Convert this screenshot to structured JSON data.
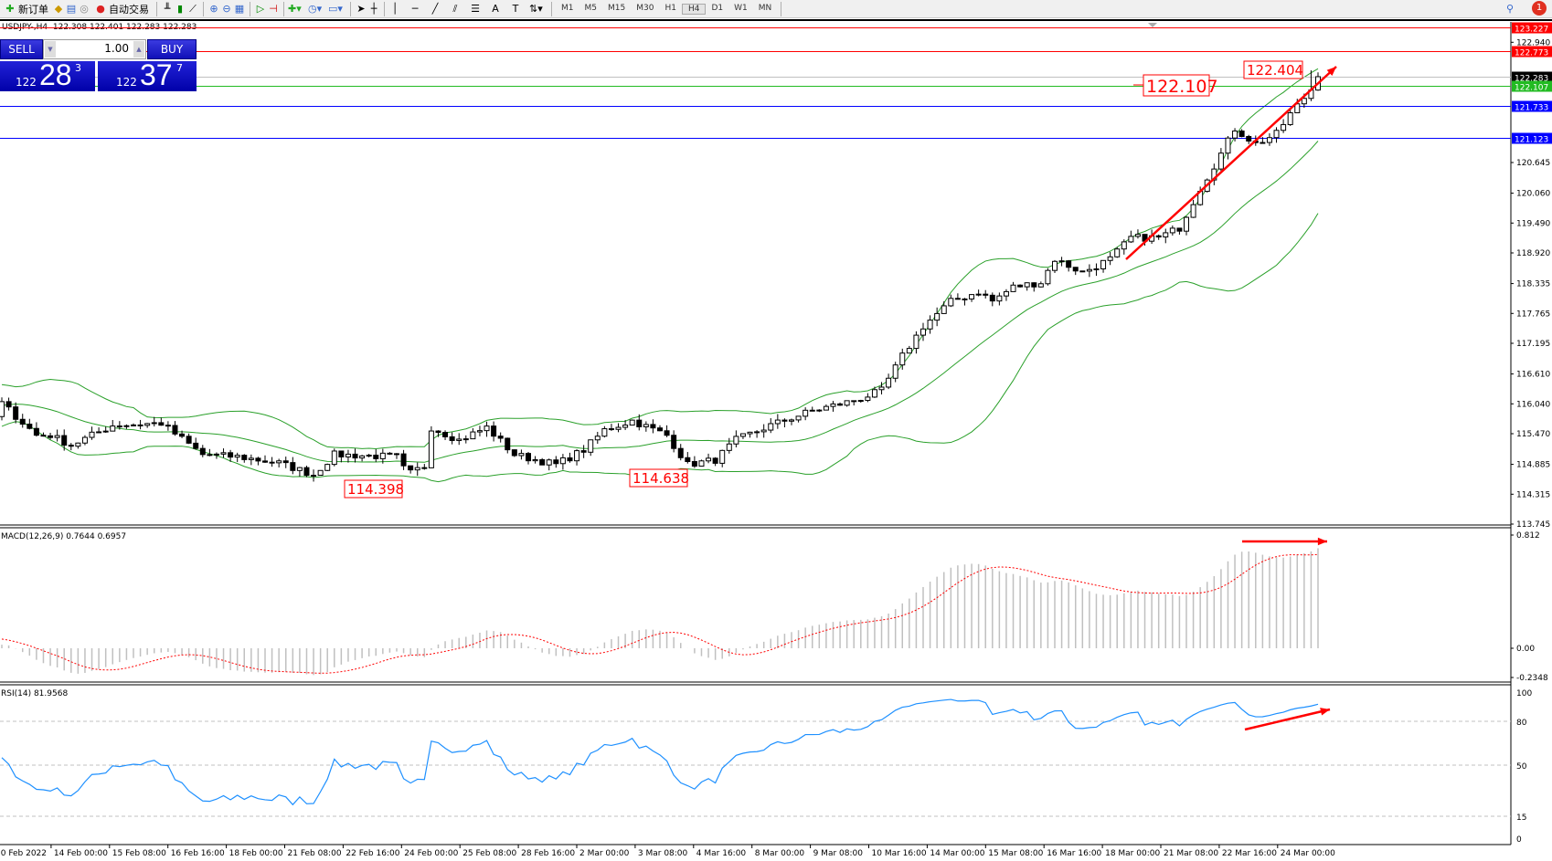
{
  "toolbar": {
    "new_order": "新订单",
    "auto_trading": "自动交易",
    "timeframes": [
      "M1",
      "M5",
      "M15",
      "M30",
      "H1",
      "H4",
      "D1",
      "W1",
      "MN"
    ],
    "active_timeframe": "H4",
    "notification_count": "1",
    "icons": [
      "new-order-icon",
      "market-watch-icon",
      "data-window-icon",
      "navigator-icon",
      "signals-icon",
      "auto-trading-icon",
      "bar-chart-icon",
      "candlestick-icon",
      "line-chart-icon",
      "zoom-in-icon",
      "zoom-out-icon",
      "tile-windows-icon",
      "auto-scroll-icon",
      "chart-shift-icon",
      "indicators-icon",
      "periods-icon",
      "templates-icon",
      "cursor-icon",
      "crosshair-icon",
      "vertical-line-icon",
      "horizontal-line-icon",
      "trendline-icon",
      "channel-icon",
      "fibonacci-icon",
      "text-icon",
      "text-label-icon",
      "arrows-icon",
      "search-icon",
      "notification-icon"
    ]
  },
  "symbol": {
    "name": "USDJPY-,H4",
    "ohlc": "122.308 122.401 122.283 122.283"
  },
  "one_click": {
    "sell_label": "SELL",
    "buy_label": "BUY",
    "lot": "1.00",
    "sell": {
      "prefix": "122",
      "big": "28",
      "sup": "3"
    },
    "buy": {
      "prefix": "122",
      "big": "37",
      "sup": "7"
    }
  },
  "price_axis": {
    "ticks": [
      "122.940",
      "120.645",
      "120.060",
      "119.490",
      "118.920",
      "118.335",
      "117.765",
      "117.195",
      "116.610",
      "116.040",
      "115.470",
      "114.885",
      "114.315",
      "113.745"
    ]
  },
  "levels": [
    {
      "price": "123.227",
      "color": "#ff0000"
    },
    {
      "price": "122.773",
      "color": "#ff0000"
    },
    {
      "price": "122.283",
      "color": "#000000",
      "line": "#c0c0c0"
    },
    {
      "price": "122.107",
      "color": "#22bb22"
    },
    {
      "price": "121.733",
      "color": "#0000ff"
    },
    {
      "price": "121.123",
      "color": "#0000ff"
    }
  ],
  "price_labels": [
    {
      "text": "122.107",
      "big": true
    },
    {
      "text": "122.404"
    },
    {
      "text": "114.398"
    },
    {
      "text": "114.638"
    }
  ],
  "price_path": [
    [
      0,
      116.05
    ],
    [
      5,
      115.44
    ],
    [
      7,
      115.44
    ],
    [
      10,
      115.25
    ],
    [
      16,
      115.63
    ],
    [
      23,
      115.67
    ],
    [
      29,
      115.07
    ],
    [
      34,
      115.03
    ],
    [
      40,
      114.91
    ],
    [
      45,
      114.69
    ],
    [
      48,
      115.07
    ],
    [
      57,
      115.03
    ],
    [
      58.5,
      114.69
    ],
    [
      61,
      114.85
    ],
    [
      62,
      115.59
    ],
    [
      66,
      115.35
    ],
    [
      70,
      115.59
    ],
    [
      74,
      115.07
    ],
    [
      80,
      114.88
    ],
    [
      84,
      115.16
    ],
    [
      87,
      115.54
    ],
    [
      91,
      115.72
    ],
    [
      96,
      115.44
    ],
    [
      99,
      114.88
    ],
    [
      103,
      114.97
    ],
    [
      106,
      115.35
    ],
    [
      111,
      115.63
    ],
    [
      117,
      115.91
    ],
    [
      123,
      116.1
    ],
    [
      127,
      116.29
    ],
    [
      130,
      116.95
    ],
    [
      133,
      117.52
    ],
    [
      137,
      117.99
    ],
    [
      141,
      118.18
    ],
    [
      143,
      118.0
    ],
    [
      146,
      118.27
    ],
    [
      150,
      118.36
    ],
    [
      152,
      118.8
    ],
    [
      156,
      118.55
    ],
    [
      160,
      118.8
    ],
    [
      163,
      119.21
    ],
    [
      167,
      119.21
    ],
    [
      170,
      119.4
    ],
    [
      173,
      120.15
    ],
    [
      176,
      120.81
    ],
    [
      178,
      121.29
    ],
    [
      181,
      121.0
    ],
    [
      184,
      121.19
    ],
    [
      186,
      121.57
    ],
    [
      189,
      122.04
    ],
    [
      190,
      122.283
    ]
  ],
  "macd": {
    "label": "MACD(12,26,9) 0.7644 0.6957",
    "ticks": [
      "0.812",
      "0.00",
      "-0.2348"
    ]
  },
  "rsi": {
    "label": "RSI(14) 81.9568",
    "ticks": [
      "100",
      "80",
      "50",
      "15",
      "0"
    ]
  },
  "time_axis": [
    "10 Feb 2022",
    "14 Feb 00:00",
    "15 Feb 08:00",
    "16 Feb 16:00",
    "18 Feb 00:00",
    "21 Feb 08:00",
    "22 Feb 16:00",
    "24 Feb 00:00",
    "25 Feb 08:00",
    "28 Feb 16:00",
    "2 Mar 00:00",
    "3 Mar 08:00",
    "4 Mar 16:00",
    "8 Mar 00:00",
    "9 Mar 08:00",
    "10 Mar 16:00",
    "14 Mar 00:00",
    "15 Mar 08:00",
    "16 Mar 16:00",
    "18 Mar 00:00",
    "21 Mar 08:00",
    "22 Mar 16:00",
    "24 Mar 00:00"
  ],
  "colors": {
    "band": "#2aa02a",
    "macd_hist": "#c0c0c0",
    "macd_signal": "#ff0000",
    "rsi": "#1e90ff",
    "arrow": "#ff0000"
  }
}
